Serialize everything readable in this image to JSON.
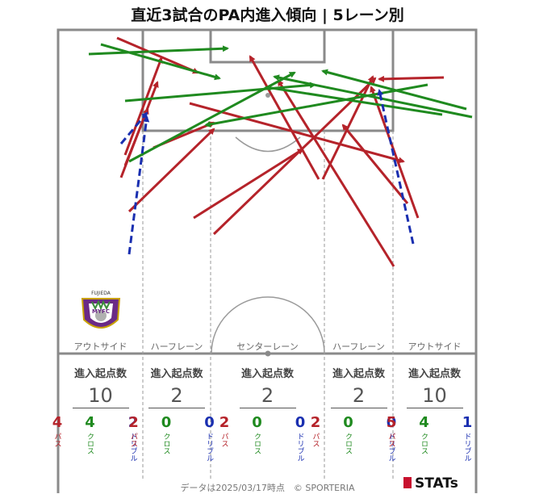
{
  "title": "直近3試合のPA内進入傾向 | 5レーン別",
  "lanes": [
    {
      "label": "アウトサイド",
      "header": "進入起点数",
      "total": "10",
      "pass": "4",
      "cross": "4",
      "dribble": "2"
    },
    {
      "label": "ハーフレーン",
      "header": "進入起点数",
      "total": "2",
      "pass": "2",
      "cross": "0",
      "dribble": "0"
    },
    {
      "label": "センターレーン",
      "header": "進入起点数",
      "total": "2",
      "pass": "2",
      "cross": "0",
      "dribble": "0"
    },
    {
      "label": "ハーフレーン",
      "header": "進入起点数",
      "total": "2",
      "pass": "2",
      "cross": "0",
      "dribble": "0"
    },
    {
      "label": "アウトサイド",
      "header": "進入起点数",
      "total": "10",
      "pass": "5",
      "cross": "4",
      "dribble": "1"
    }
  ],
  "legend_labels": {
    "pass": "パス",
    "cross": "クロス",
    "dribble": "ドリブル"
  },
  "crest": {
    "top_text": "FUJIEDA",
    "mid_text": "MYFC"
  },
  "footer": "データは2025/03/17時点　© SPORTERIA",
  "brand": "STATs",
  "colors": {
    "pass": "#b5232a",
    "cross": "#1f8a1f",
    "dribble": "#1a2fb0",
    "pitch_line": "#888888"
  }
}
